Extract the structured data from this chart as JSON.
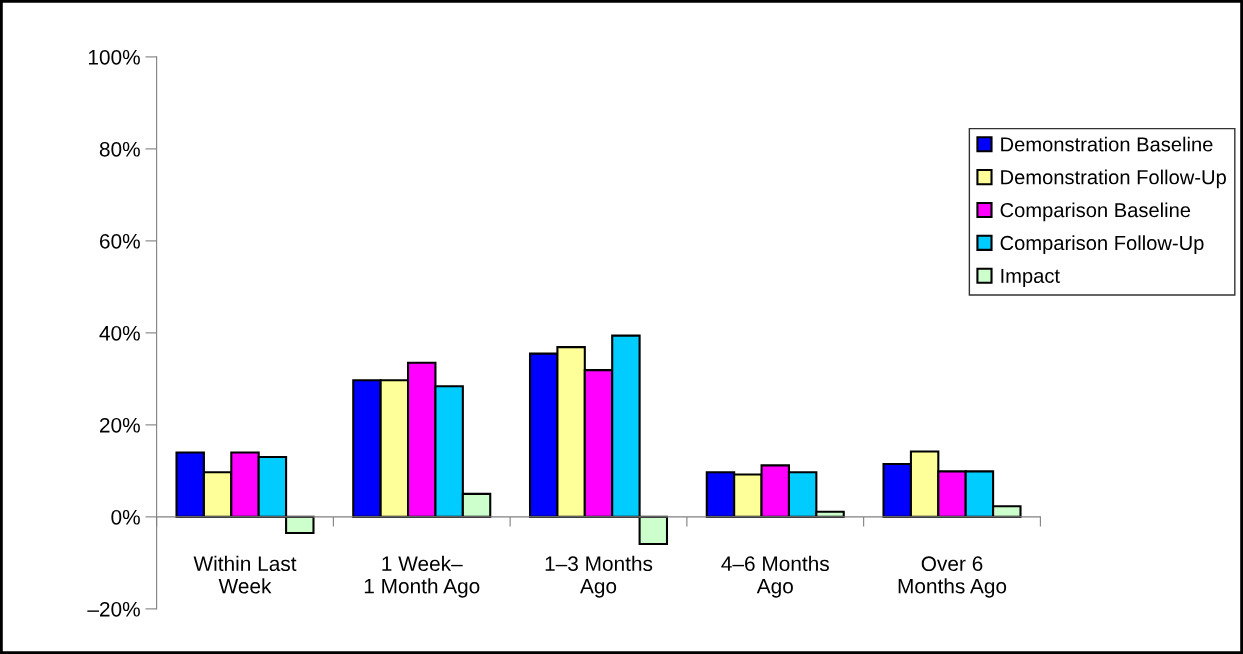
{
  "chart_data": {
    "type": "bar",
    "categories": [
      "Within Last\nWeek",
      "1 Week–\n1 Month Ago",
      "1–3 Months\nAgo",
      "4–6 Months\nAgo",
      "Over 6\nMonths Ago"
    ],
    "series": [
      {
        "name": "Demonstration Baseline",
        "color": "#0000ff",
        "values": [
          14.0,
          29.7,
          35.5,
          9.7,
          11.5
        ]
      },
      {
        "name": "Demonstration Follow-Up",
        "color": "#ffff99",
        "values": [
          9.7,
          29.7,
          36.9,
          9.2,
          14.2
        ]
      },
      {
        "name": "Comparison Baseline",
        "color": "#ff00ff",
        "values": [
          14.0,
          33.5,
          31.9,
          11.2,
          9.9
        ]
      },
      {
        "name": "Comparison Follow-Up",
        "color": "#00ccff",
        "values": [
          13.0,
          28.4,
          39.4,
          9.7,
          9.9
        ]
      },
      {
        "name": "Impact",
        "color": "#ccffcc",
        "values": [
          -3.5,
          5.0,
          -5.9,
          1.1,
          2.3
        ]
      }
    ],
    "ylim": [
      -20,
      100
    ],
    "yticks": [
      {
        "value": -20,
        "label": "–20%"
      },
      {
        "value": 0,
        "label": "0%"
      },
      {
        "value": 20,
        "label": "20%"
      },
      {
        "value": 40,
        "label": "40%"
      },
      {
        "value": 60,
        "label": "60%"
      },
      {
        "value": 80,
        "label": "80%"
      },
      {
        "value": 100,
        "label": "100%"
      }
    ],
    "grid": false,
    "legend": "top right"
  }
}
